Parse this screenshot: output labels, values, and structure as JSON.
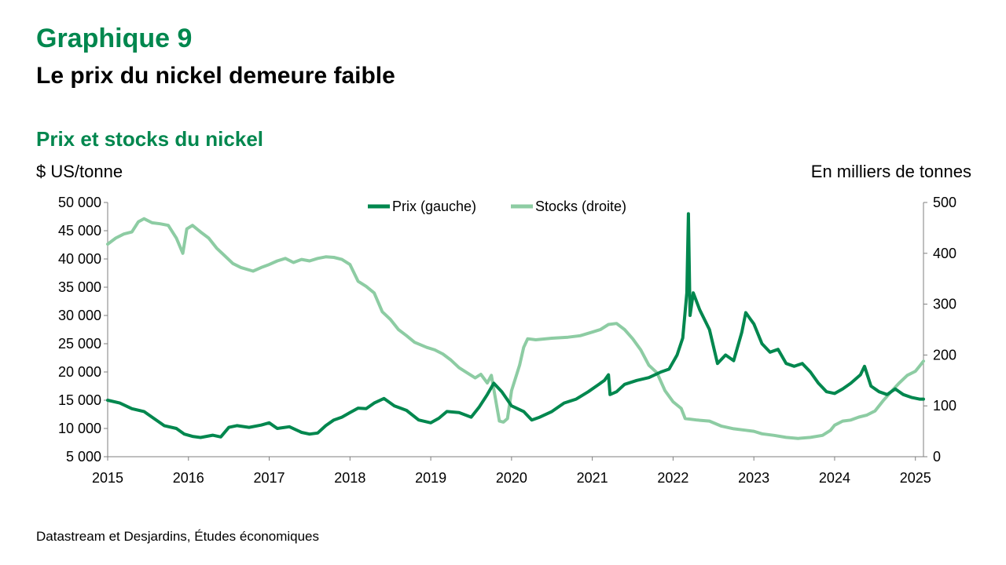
{
  "header": {
    "kicker": "Graphique 9",
    "title": "Le prix du nickel demeure faible"
  },
  "chart_data": {
    "type": "line",
    "title": "Prix et stocks du nickel",
    "ylabel_left": "$ US/tonne",
    "ylabel_right": "En milliers de tonnes",
    "x_ticks": [
      "2015",
      "2016",
      "2017",
      "2018",
      "2019",
      "2020",
      "2021",
      "2022",
      "2023",
      "2024",
      "2025"
    ],
    "xlim": [
      2015,
      2025.1
    ],
    "y_left": {
      "min": 5000,
      "max": 50000,
      "step": 5000,
      "tick_labels": [
        "5 000",
        "10 000",
        "15 000",
        "20 000",
        "25 000",
        "30 000",
        "35 000",
        "40 000",
        "45 000",
        "50 000"
      ]
    },
    "y_right": {
      "min": 0,
      "max": 500,
      "step": 100,
      "tick_labels": [
        "0",
        "100",
        "200",
        "300",
        "400",
        "500"
      ]
    },
    "legend_position": "top-center",
    "grid": false,
    "series": [
      {
        "name": "Prix (gauche)",
        "axis": "left",
        "color": "#00874E",
        "points": [
          [
            2015.0,
            15000
          ],
          [
            2015.15,
            14500
          ],
          [
            2015.3,
            13500
          ],
          [
            2015.45,
            13000
          ],
          [
            2015.55,
            12000
          ],
          [
            2015.7,
            10500
          ],
          [
            2015.85,
            10000
          ],
          [
            2015.95,
            9000
          ],
          [
            2016.05,
            8600
          ],
          [
            2016.15,
            8400
          ],
          [
            2016.3,
            8800
          ],
          [
            2016.4,
            8500
          ],
          [
            2016.5,
            10200
          ],
          [
            2016.6,
            10500
          ],
          [
            2016.75,
            10200
          ],
          [
            2016.9,
            10600
          ],
          [
            2017.0,
            11000
          ],
          [
            2017.1,
            10000
          ],
          [
            2017.25,
            10300
          ],
          [
            2017.4,
            9300
          ],
          [
            2017.5,
            9000
          ],
          [
            2017.6,
            9200
          ],
          [
            2017.7,
            10500
          ],
          [
            2017.8,
            11500
          ],
          [
            2017.9,
            12000
          ],
          [
            2018.0,
            12800
          ],
          [
            2018.1,
            13600
          ],
          [
            2018.2,
            13500
          ],
          [
            2018.3,
            14500
          ],
          [
            2018.42,
            15300
          ],
          [
            2018.55,
            14000
          ],
          [
            2018.7,
            13200
          ],
          [
            2018.85,
            11500
          ],
          [
            2019.0,
            11000
          ],
          [
            2019.1,
            11800
          ],
          [
            2019.2,
            13000
          ],
          [
            2019.35,
            12800
          ],
          [
            2019.5,
            12000
          ],
          [
            2019.6,
            13800
          ],
          [
            2019.7,
            16000
          ],
          [
            2019.78,
            18000
          ],
          [
            2019.88,
            16500
          ],
          [
            2020.0,
            14000
          ],
          [
            2020.15,
            13000
          ],
          [
            2020.25,
            11500
          ],
          [
            2020.35,
            12000
          ],
          [
            2020.5,
            13000
          ],
          [
            2020.65,
            14500
          ],
          [
            2020.8,
            15200
          ],
          [
            2020.95,
            16500
          ],
          [
            2021.05,
            17500
          ],
          [
            2021.15,
            18500
          ],
          [
            2021.2,
            19500
          ],
          [
            2021.22,
            16000
          ],
          [
            2021.3,
            16500
          ],
          [
            2021.4,
            17800
          ],
          [
            2021.55,
            18500
          ],
          [
            2021.7,
            19000
          ],
          [
            2021.85,
            20000
          ],
          [
            2021.95,
            20500
          ],
          [
            2022.05,
            23000
          ],
          [
            2022.12,
            26000
          ],
          [
            2022.17,
            34000
          ],
          [
            2022.19,
            48000
          ],
          [
            2022.21,
            30000
          ],
          [
            2022.25,
            34000
          ],
          [
            2022.33,
            31000
          ],
          [
            2022.45,
            27500
          ],
          [
            2022.55,
            21500
          ],
          [
            2022.65,
            23000
          ],
          [
            2022.75,
            22000
          ],
          [
            2022.85,
            27000
          ],
          [
            2022.9,
            30500
          ],
          [
            2022.95,
            29500
          ],
          [
            2023.0,
            28500
          ],
          [
            2023.1,
            25000
          ],
          [
            2023.2,
            23500
          ],
          [
            2023.3,
            24000
          ],
          [
            2023.4,
            21500
          ],
          [
            2023.5,
            21000
          ],
          [
            2023.6,
            21500
          ],
          [
            2023.7,
            20000
          ],
          [
            2023.8,
            18000
          ],
          [
            2023.9,
            16500
          ],
          [
            2024.0,
            16200
          ],
          [
            2024.1,
            17000
          ],
          [
            2024.2,
            18000
          ],
          [
            2024.32,
            19500
          ],
          [
            2024.37,
            21000
          ],
          [
            2024.45,
            17500
          ],
          [
            2024.55,
            16500
          ],
          [
            2024.65,
            16000
          ],
          [
            2024.75,
            17000
          ],
          [
            2024.85,
            16000
          ],
          [
            2024.95,
            15500
          ],
          [
            2025.05,
            15200
          ],
          [
            2025.1,
            15200
          ]
        ]
      },
      {
        "name": "Stocks (droite)",
        "axis": "right",
        "color": "#8DCCA3",
        "points": [
          [
            2015.0,
            418
          ],
          [
            2015.1,
            430
          ],
          [
            2015.2,
            438
          ],
          [
            2015.3,
            442
          ],
          [
            2015.38,
            462
          ],
          [
            2015.45,
            468
          ],
          [
            2015.55,
            460
          ],
          [
            2015.65,
            458
          ],
          [
            2015.75,
            455
          ],
          [
            2015.85,
            430
          ],
          [
            2015.93,
            400
          ],
          [
            2015.98,
            448
          ],
          [
            2016.05,
            455
          ],
          [
            2016.15,
            442
          ],
          [
            2016.25,
            430
          ],
          [
            2016.35,
            410
          ],
          [
            2016.45,
            395
          ],
          [
            2016.55,
            380
          ],
          [
            2016.65,
            372
          ],
          [
            2016.8,
            365
          ],
          [
            2016.9,
            372
          ],
          [
            2017.0,
            378
          ],
          [
            2017.1,
            385
          ],
          [
            2017.2,
            390
          ],
          [
            2017.3,
            382
          ],
          [
            2017.4,
            388
          ],
          [
            2017.5,
            385
          ],
          [
            2017.6,
            390
          ],
          [
            2017.7,
            393
          ],
          [
            2017.8,
            392
          ],
          [
            2017.9,
            388
          ],
          [
            2018.0,
            378
          ],
          [
            2018.1,
            345
          ],
          [
            2018.2,
            335
          ],
          [
            2018.3,
            322
          ],
          [
            2018.4,
            285
          ],
          [
            2018.5,
            270
          ],
          [
            2018.6,
            250
          ],
          [
            2018.7,
            238
          ],
          [
            2018.8,
            225
          ],
          [
            2018.95,
            215
          ],
          [
            2019.05,
            210
          ],
          [
            2019.15,
            202
          ],
          [
            2019.25,
            190
          ],
          [
            2019.35,
            175
          ],
          [
            2019.45,
            165
          ],
          [
            2019.55,
            155
          ],
          [
            2019.62,
            162
          ],
          [
            2019.7,
            145
          ],
          [
            2019.75,
            160
          ],
          [
            2019.8,
            115
          ],
          [
            2019.85,
            70
          ],
          [
            2019.9,
            68
          ],
          [
            2019.95,
            75
          ],
          [
            2020.0,
            130
          ],
          [
            2020.1,
            180
          ],
          [
            2020.15,
            215
          ],
          [
            2020.2,
            232
          ],
          [
            2020.3,
            230
          ],
          [
            2020.5,
            233
          ],
          [
            2020.7,
            235
          ],
          [
            2020.85,
            238
          ],
          [
            2021.0,
            245
          ],
          [
            2021.1,
            250
          ],
          [
            2021.2,
            260
          ],
          [
            2021.3,
            262
          ],
          [
            2021.4,
            250
          ],
          [
            2021.5,
            232
          ],
          [
            2021.6,
            210
          ],
          [
            2021.7,
            180
          ],
          [
            2021.8,
            165
          ],
          [
            2021.9,
            130
          ],
          [
            2022.0,
            108
          ],
          [
            2022.1,
            95
          ],
          [
            2022.15,
            75
          ],
          [
            2022.3,
            72
          ],
          [
            2022.45,
            70
          ],
          [
            2022.6,
            60
          ],
          [
            2022.75,
            55
          ],
          [
            2022.9,
            52
          ],
          [
            2023.0,
            50
          ],
          [
            2023.1,
            45
          ],
          [
            2023.25,
            42
          ],
          [
            2023.4,
            38
          ],
          [
            2023.55,
            36
          ],
          [
            2023.7,
            38
          ],
          [
            2023.85,
            42
          ],
          [
            2023.95,
            52
          ],
          [
            2024.0,
            62
          ],
          [
            2024.1,
            70
          ],
          [
            2024.2,
            72
          ],
          [
            2024.3,
            78
          ],
          [
            2024.4,
            82
          ],
          [
            2024.5,
            90
          ],
          [
            2024.6,
            110
          ],
          [
            2024.7,
            128
          ],
          [
            2024.8,
            145
          ],
          [
            2024.9,
            160
          ],
          [
            2025.0,
            168
          ],
          [
            2025.05,
            178
          ],
          [
            2025.1,
            188
          ]
        ]
      }
    ]
  },
  "footer": {
    "source": "Datastream et Desjardins, Études économiques"
  }
}
